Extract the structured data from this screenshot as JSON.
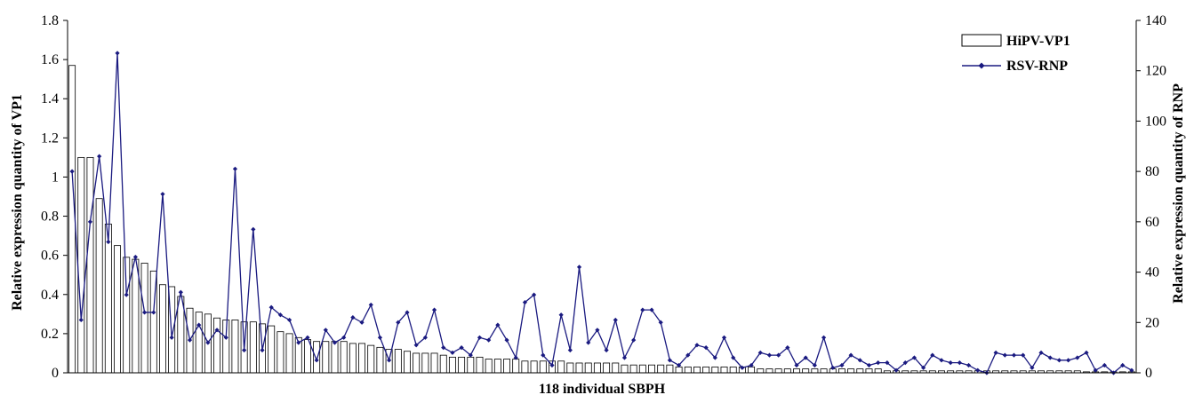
{
  "chart_data": {
    "type": "bar",
    "xlabel": "118 individual SBPH",
    "ylabel": "Relative expression quantity of VP1",
    "y2label": "Relative expression quantity of RNP",
    "ylim": [
      0,
      1.8
    ],
    "y2lim": [
      0,
      140
    ],
    "yticks": [
      "0",
      "0.2",
      "0.4",
      "0.6",
      "0.8",
      "1",
      "1.2",
      "1.4",
      "1.6",
      "1.8"
    ],
    "y2ticks": [
      "0",
      "20",
      "40",
      "60",
      "80",
      "100",
      "120",
      "140"
    ],
    "legend_position": "top-right",
    "grid": false,
    "colors": {
      "bar_fill": "#ffffff",
      "bar_stroke": "#000000",
      "line": "#1a1a80",
      "marker": "#1a1a80"
    },
    "series": [
      {
        "name": "HiPV-VP1",
        "type": "bar",
        "axis": "left",
        "values": [
          1.57,
          1.1,
          1.1,
          0.89,
          0.76,
          0.65,
          0.59,
          0.58,
          0.56,
          0.52,
          0.45,
          0.44,
          0.39,
          0.33,
          0.31,
          0.3,
          0.28,
          0.27,
          0.27,
          0.26,
          0.26,
          0.25,
          0.24,
          0.21,
          0.2,
          0.18,
          0.17,
          0.16,
          0.16,
          0.16,
          0.16,
          0.15,
          0.15,
          0.14,
          0.13,
          0.12,
          0.12,
          0.11,
          0.1,
          0.1,
          0.1,
          0.09,
          0.08,
          0.08,
          0.08,
          0.08,
          0.07,
          0.07,
          0.07,
          0.07,
          0.06,
          0.06,
          0.06,
          0.06,
          0.06,
          0.05,
          0.05,
          0.05,
          0.05,
          0.05,
          0.05,
          0.04,
          0.04,
          0.04,
          0.04,
          0.04,
          0.04,
          0.03,
          0.03,
          0.03,
          0.03,
          0.03,
          0.03,
          0.03,
          0.03,
          0.03,
          0.02,
          0.02,
          0.02,
          0.02,
          0.02,
          0.02,
          0.02,
          0.02,
          0.02,
          0.02,
          0.02,
          0.02,
          0.02,
          0.02,
          0.01,
          0.01,
          0.01,
          0.01,
          0.01,
          0.01,
          0.01,
          0.01,
          0.01,
          0.01,
          0.01,
          0.01,
          0.01,
          0.01,
          0.01,
          0.01,
          0.01,
          0.01,
          0.01,
          0.01,
          0.01,
          0.01,
          0.005,
          0.005,
          0.005,
          0.005,
          0.005,
          0.005
        ]
      },
      {
        "name": "RSV-RNP",
        "type": "line",
        "axis": "right",
        "values": [
          80,
          21,
          60,
          86,
          52,
          127,
          31,
          46,
          24,
          24,
          71,
          14,
          32,
          13,
          19,
          12,
          17,
          14,
          81,
          9,
          57,
          9,
          26,
          23,
          21,
          12,
          14,
          5,
          17,
          12,
          14,
          22,
          20,
          27,
          14,
          5,
          20,
          24,
          11,
          14,
          25,
          10,
          8,
          10,
          7,
          14,
          13,
          19,
          13,
          6,
          28,
          31,
          7,
          3,
          23,
          9,
          42,
          12,
          17,
          9,
          21,
          6,
          13,
          25,
          25,
          20,
          5,
          3,
          7,
          11,
          10,
          6,
          14,
          6,
          2,
          3,
          8,
          7,
          7,
          10,
          3,
          6,
          3,
          14,
          2,
          3,
          7,
          5,
          3,
          4,
          4,
          1,
          4,
          6,
          2,
          7,
          5,
          4,
          4,
          3,
          1,
          0,
          8,
          7,
          7,
          7,
          2,
          8,
          6,
          5,
          5,
          6,
          8,
          1,
          3,
          0,
          3,
          1
        ]
      }
    ]
  }
}
